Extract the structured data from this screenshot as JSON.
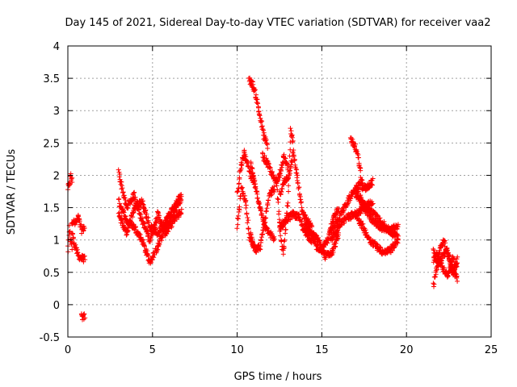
{
  "colors": {
    "series": "#ff0000",
    "grid": "#a0a0a0",
    "axis": "#000000"
  },
  "chart_data": {
    "type": "scatter",
    "title": "Day 145 of 2021, Sidereal Day-to-day VTEC variation (SDTVAR) for receiver vaa2",
    "xlabel": "GPS time / hours",
    "ylabel": "SDTVAR / TECUs",
    "xlim": [
      0,
      25
    ],
    "ylim": [
      -0.5,
      4
    ],
    "xticks": [
      0,
      5,
      10,
      15,
      20,
      25
    ],
    "xtick_labels": [
      "0",
      "5",
      "10",
      "15",
      "20",
      "25"
    ],
    "yticks": [
      -0.5,
      0,
      0.5,
      1,
      1.5,
      2,
      2.5,
      3,
      3.5,
      4
    ],
    "ytick_labels": [
      "-0.5",
      "0",
      "0.5",
      "1",
      "1.5",
      "2",
      "2.5",
      "3",
      "3.5",
      "4"
    ],
    "grid": true,
    "marker": "+",
    "series": [
      {
        "name": "SDTVAR",
        "segments": [
          {
            "t0": 0.0,
            "t1": 0.25,
            "tracks": [
              [
                1.8,
                1.85,
                2.0,
                1.9
              ],
              [
                0.85,
                1.2,
                1.0,
                0.9
              ]
            ]
          },
          {
            "t0": 0.25,
            "t1": 1.0,
            "tracks": [
              [
                1.3,
                1.25,
                1.35,
                1.15,
                1.2
              ],
              [
                1.1,
                0.9,
                0.75,
                0.72,
                0.7
              ]
            ]
          },
          {
            "t0": 0.8,
            "t1": 1.0,
            "tracks": [
              [
                -0.18,
                -0.2,
                -0.18
              ]
            ]
          },
          {
            "t0": 3.0,
            "t1": 6.7,
            "tracks": [
              [
                2.05,
                1.5,
                1.7,
                1.3,
                1.0,
                1.4,
                1.1,
                1.3,
                1.45
              ],
              [
                1.6,
                1.3,
                1.2,
                1.0,
                0.65,
                0.9,
                1.2,
                1.4,
                1.65
              ],
              [
                1.4,
                1.1,
                1.5,
                1.6,
                1.2,
                1.1,
                1.3,
                1.5,
                1.7
              ]
            ]
          },
          {
            "t0": 10.0,
            "t1": 11.0,
            "tracks": [
              [
                1.7,
                2.1,
                2.35,
                2.2,
                2.0,
                1.9
              ],
              [
                1.2,
                1.8,
                1.6,
                1.0,
                0.9
              ]
            ]
          },
          {
            "t0": 10.7,
            "t1": 11.8,
            "tracks": [
              [
                3.48,
                3.4,
                3.2,
                2.9,
                2.6,
                2.45
              ]
            ]
          },
          {
            "t0": 10.8,
            "t1": 12.2,
            "tracks": [
              [
                2.2,
                1.8,
                1.5,
                1.2,
                1.1,
                1.0
              ],
              [
                1.1,
                0.85,
                0.9,
                1.3,
                1.7,
                1.8
              ]
            ]
          },
          {
            "t0": 11.5,
            "t1": 13.0,
            "tracks": [
              [
                2.3,
                2.2,
                2.05,
                1.9,
                2.0,
                2.3,
                2.1
              ]
            ]
          },
          {
            "t0": 12.3,
            "t1": 13.3,
            "tracks": [
              [
                2.0,
                1.5,
                1.0,
                0.8,
                1.2,
                1.6,
                2.7,
                2.5
              ]
            ]
          },
          {
            "t0": 12.5,
            "t1": 14.4,
            "tracks": [
              [
                1.7,
                1.9,
                2.0,
                2.35,
                1.9,
                1.4,
                1.3,
                1.2
              ],
              [
                1.2,
                1.3,
                1.4,
                1.35,
                1.1,
                1.0
              ]
            ]
          },
          {
            "t0": 14.0,
            "t1": 16.0,
            "tracks": [
              [
                1.2,
                1.1,
                0.9,
                0.85,
                1.0,
                1.3,
                1.5
              ],
              [
                1.3,
                1.1,
                1.0,
                0.75,
                0.8,
                1.1
              ]
            ]
          },
          {
            "t0": 15.5,
            "t1": 18.0,
            "tracks": [
              [
                1.1,
                1.3,
                1.5,
                1.7,
                1.85,
                1.8,
                1.9
              ],
              [
                1.0,
                1.2,
                1.35,
                1.4,
                1.5,
                1.6
              ]
            ]
          },
          {
            "t0": 16.7,
            "t1": 17.4,
            "tracks": [
              [
                2.55,
                2.5,
                2.45,
                2.3,
                2.1,
                1.85
              ]
            ]
          },
          {
            "t0": 17.0,
            "t1": 19.5,
            "tracks": [
              [
                1.8,
                1.6,
                1.5,
                1.4,
                1.3,
                1.2,
                1.1,
                1.05
              ],
              [
                1.4,
                1.2,
                1.0,
                0.9,
                0.8,
                0.85,
                1.0
              ],
              [
                1.7,
                1.5,
                1.3,
                1.2,
                1.15,
                1.2
              ]
            ]
          },
          {
            "t0": 21.6,
            "t1": 23.0,
            "tracks": [
              [
                0.3,
                0.6,
                0.9,
                1.0,
                0.8,
                0.6,
                0.5,
                0.4
              ],
              [
                0.7,
                0.8,
                0.55,
                0.45,
                0.7,
                0.6
              ],
              [
                0.85,
                0.6,
                0.75,
                0.85,
                0.45,
                0.7
              ]
            ]
          }
        ]
      }
    ]
  }
}
